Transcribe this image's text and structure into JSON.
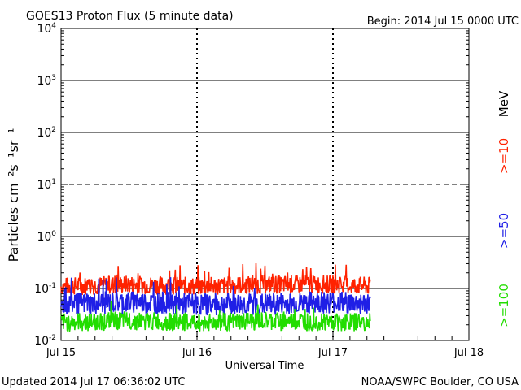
{
  "header": {
    "title": "GOES13 Proton Flux (5 minute data)",
    "begin": "Begin: 2014 Jul 15 0000 UTC"
  },
  "footer": {
    "updated": "Updated 2014 Jul 17 06:36:02 UTC",
    "credit": "NOAA/SWPC Boulder, CO USA"
  },
  "chart_data": {
    "type": "line",
    "title": "GOES13 Proton Flux (5 minute data)",
    "xlabel": "Universal Time",
    "ylabel": "Particles cm⁻²s⁻¹sr⁻¹",
    "y_scale": "log",
    "ylim": [
      0.01,
      10000
    ],
    "y_ticks": [
      {
        "base": "10",
        "exp": "-2"
      },
      {
        "base": "10",
        "exp": "-1"
      },
      {
        "base": "10",
        "exp": "0"
      },
      {
        "base": "10",
        "exp": "1"
      },
      {
        "base": "10",
        "exp": "2"
      },
      {
        "base": "10",
        "exp": "3"
      },
      {
        "base": "10",
        "exp": "4"
      }
    ],
    "x_range_days": [
      "2014-07-15",
      "2014-07-18"
    ],
    "x_ticks": [
      "Jul 15",
      "Jul 16",
      "Jul 17",
      "Jul 18"
    ],
    "data_end": "2014-07-17 06:35 UTC",
    "grid": {
      "solid_at": [
        1000,
        100,
        1,
        0.1
      ],
      "dashed_at": [
        10
      ]
    },
    "unit": "MeV",
    "series": [
      {
        "name": ">=10",
        "color": "#ff2200",
        "x": [
          "2014-07-15 00:00",
          "2014-07-15 12:00",
          "2014-07-16 00:00",
          "2014-07-16 12:00",
          "2014-07-17 00:00",
          "2014-07-17 06:35"
        ],
        "values": [
          0.11,
          0.12,
          0.11,
          0.12,
          0.12,
          0.11
        ]
      },
      {
        "name": ">=50",
        "color": "#1f1fe6",
        "x": [
          "2014-07-15 00:00",
          "2014-07-15 12:00",
          "2014-07-16 00:00",
          "2014-07-16 12:00",
          "2014-07-17 00:00",
          "2014-07-17 06:35"
        ],
        "values": [
          0.05,
          0.055,
          0.05,
          0.05,
          0.055,
          0.05
        ]
      },
      {
        "name": ">=100",
        "color": "#22dd00",
        "x": [
          "2014-07-15 00:00",
          "2014-07-15 12:00",
          "2014-07-16 00:00",
          "2014-07-16 12:00",
          "2014-07-17 00:00",
          "2014-07-17 06:35"
        ],
        "values": [
          0.022,
          0.024,
          0.022,
          0.023,
          0.023,
          0.022
        ]
      }
    ]
  }
}
